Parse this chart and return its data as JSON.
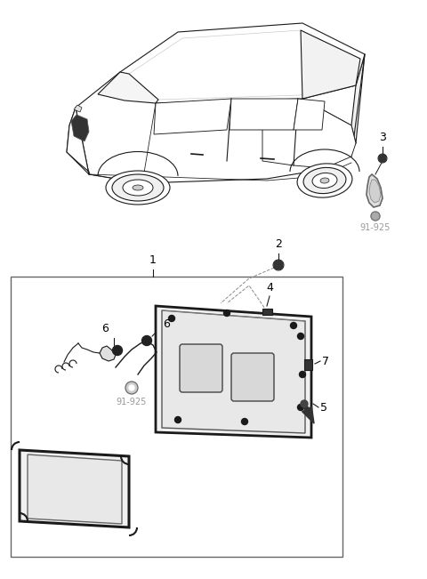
{
  "bg_color": "#ffffff",
  "line_color": "#1a1a1a",
  "gray_line": "#888888",
  "light_gray": "#cccccc",
  "dark_fill": "#222222",
  "mid_gray": "#aaaaaa",
  "box_border": "#555555",
  "label_color": "#000000",
  "ref_color": "#999999",
  "figsize": [
    4.8,
    6.51
  ],
  "dpi": 100
}
